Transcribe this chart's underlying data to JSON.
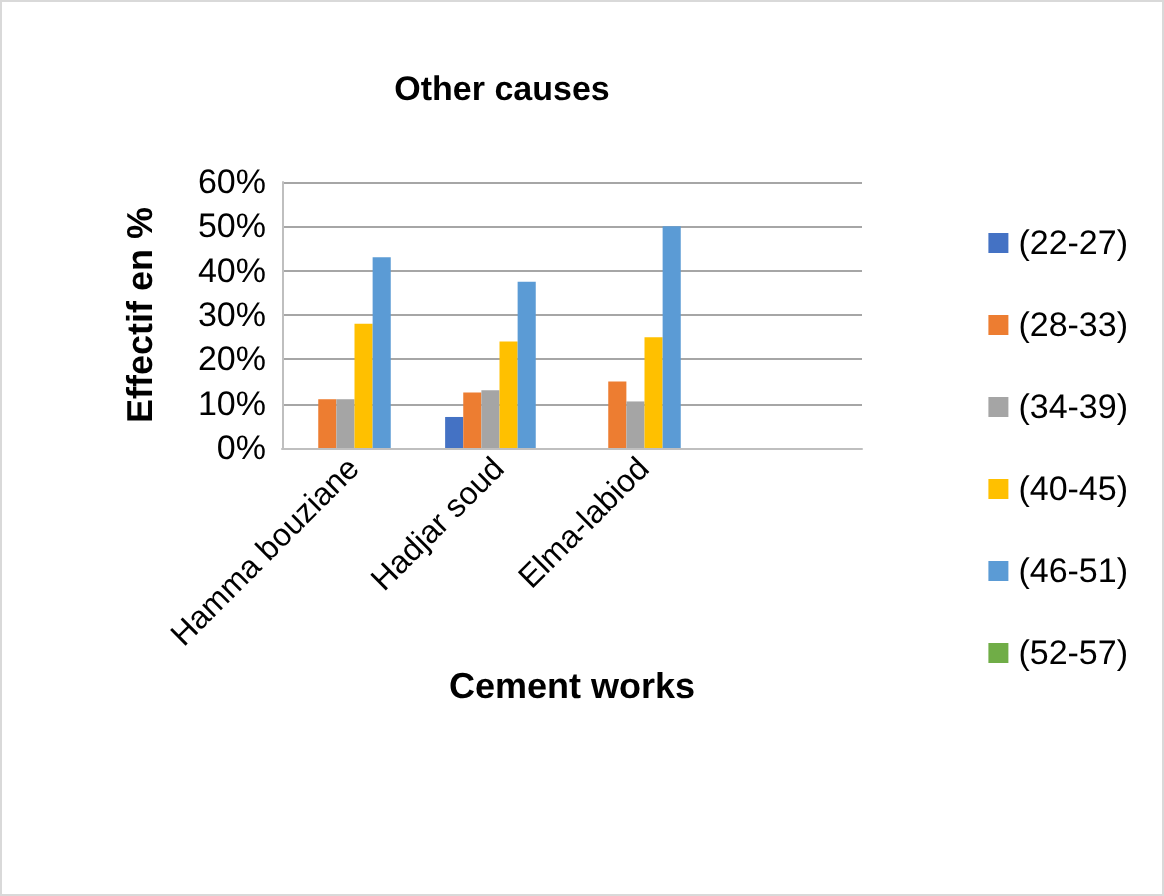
{
  "chart_data": {
    "type": "bar",
    "title": "Other causes",
    "xlabel": "Cement works",
    "ylabel": "Effectif en %",
    "categories": [
      "Hamma bouziane",
      "Hadjar soud",
      "Elma-labiod",
      null
    ],
    "series": [
      {
        "name": "(22-27)",
        "color": "#4472c4",
        "values": [
          null,
          7,
          null,
          null
        ]
      },
      {
        "name": "(28-33)",
        "color": "#ed7d31",
        "values": [
          11,
          12.5,
          15,
          null
        ]
      },
      {
        "name": "(34-39)",
        "color": "#a5a5a5",
        "values": [
          11,
          13,
          10.5,
          null
        ]
      },
      {
        "name": "(40-45)",
        "color": "#ffc000",
        "values": [
          28,
          24,
          25,
          null
        ]
      },
      {
        "name": "(46-51)",
        "color": "#5b9bd5",
        "values": [
          43,
          37.5,
          50,
          null
        ]
      },
      {
        "name": "(52-57)",
        "color": "#70ad47",
        "values": [
          null,
          null,
          null,
          null
        ]
      }
    ],
    "ylim": [
      0,
      60
    ],
    "yticks": [
      {
        "value": 0,
        "label": "0%"
      },
      {
        "value": 10,
        "label": "10%"
      },
      {
        "value": 20,
        "label": "20%"
      },
      {
        "value": 30,
        "label": "30%"
      },
      {
        "value": 40,
        "label": "40%"
      },
      {
        "value": 50,
        "label": "50%"
      },
      {
        "value": 60,
        "label": "60%"
      }
    ],
    "grid": "y",
    "legend": "right"
  }
}
